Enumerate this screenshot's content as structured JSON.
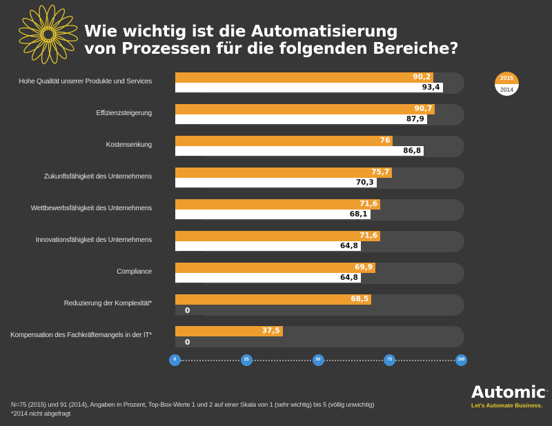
{
  "header": {
    "title_line1": "Wie wichtig ist die Automatisierung",
    "title_line2": "von Prozessen für die folgenden Bereiche?"
  },
  "legend": {
    "items": [
      {
        "label": "2015",
        "color": "#ef9d2f"
      },
      {
        "label": "2014",
        "color": "#ffffff"
      }
    ]
  },
  "chart_data": {
    "type": "bar",
    "orientation": "horizontal",
    "title": "Wie wichtig ist die Automatisierung von Prozessen für die folgenden Bereiche?",
    "xlabel": "",
    "ylabel": "",
    "xlim": [
      0,
      100
    ],
    "x_ticks": [
      "0",
      "25",
      "50",
      "75",
      "100"
    ],
    "legend_position": "top-right",
    "categories": [
      "Hohe Qualität unserer Produkte und Services",
      "Effizienzsteigerung",
      "Kostensenkung",
      "Zukunftsfähigkeit des Unternehmens",
      "Wettbewerbsfähigkeit des Unternehmens",
      "Innovationsfähigkeit des Unternehmens",
      "Compliance",
      "Reduzierung der Komplexität*",
      "Kompensation des Fachkräftemangels in der IT*"
    ],
    "series": [
      {
        "name": "2015",
        "color": "#ef9d2f",
        "values": [
          90.2,
          90.7,
          76,
          75.7,
          71.6,
          71.6,
          69.9,
          68.5,
          37.5
        ],
        "labels": [
          "90,2",
          "90,7",
          "76",
          "75,7",
          "71,6",
          "71,6",
          "69,9",
          "68,5",
          "37,5"
        ]
      },
      {
        "name": "2014",
        "color": "#ffffff",
        "values": [
          93.4,
          87.9,
          86.8,
          70.3,
          68.1,
          64.8,
          64.8,
          0,
          0
        ],
        "labels": [
          "93,4",
          "87,9",
          "86,8",
          "70,3",
          "68,1",
          "64,8",
          "64,8",
          "0",
          "0"
        ]
      }
    ]
  },
  "footnote": {
    "line1": "N=75 (2015) und 91 (2014), Angaben in Prozent, Top-Box-Werte 1 und 2 auf einer Skala von 1 (sehr wichtig) bis 5 (völlig unwichtig)",
    "line2": "*2014 nicht abgefragt"
  },
  "brand": {
    "name": "Automic",
    "trademark": "™",
    "tagline": "Let's Automate Business.",
    "tagline_color": "#e8c92a"
  }
}
